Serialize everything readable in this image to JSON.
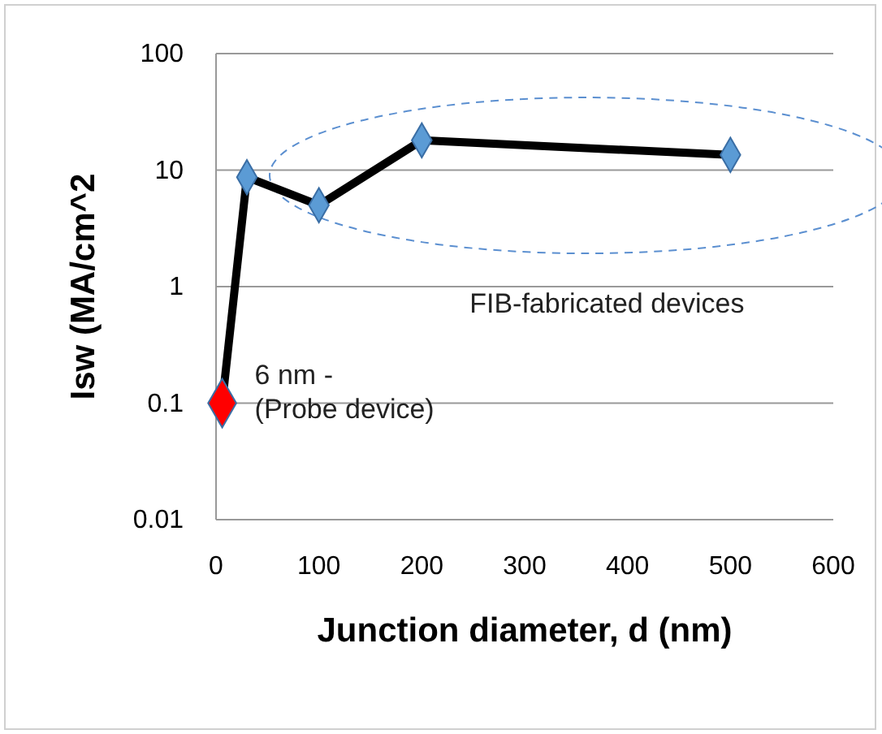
{
  "chart_data": {
    "type": "line",
    "xlabel": "Junction diameter, d (nm)",
    "ylabel": "Isw (MA/cm^2",
    "log": "y",
    "grid": "y",
    "marker": "diamond",
    "line_style": "solid",
    "xlim": [
      0,
      600
    ],
    "xticks": [
      0,
      100,
      200,
      300,
      400,
      500,
      600
    ],
    "ylim": [
      0.01,
      100
    ],
    "yticks": [
      0.01,
      0.1,
      1,
      10,
      100
    ],
    "series": [
      {
        "color": "#000000",
        "colors": [
          "#ff0000",
          "#5b9bd5",
          "#5b9bd5",
          "#5b9bd5",
          "#5b9bd5"
        ],
        "x": [
          6,
          30,
          100,
          200,
          500
        ],
        "values": [
          0.1,
          8.7,
          5,
          18,
          13.5
        ]
      }
    ],
    "annotations": [
      {
        "text": "6 nm -\n(Probe device)",
        "x": 6,
        "y": 0.1
      },
      "FIB-fabricated devices"
    ]
  }
}
